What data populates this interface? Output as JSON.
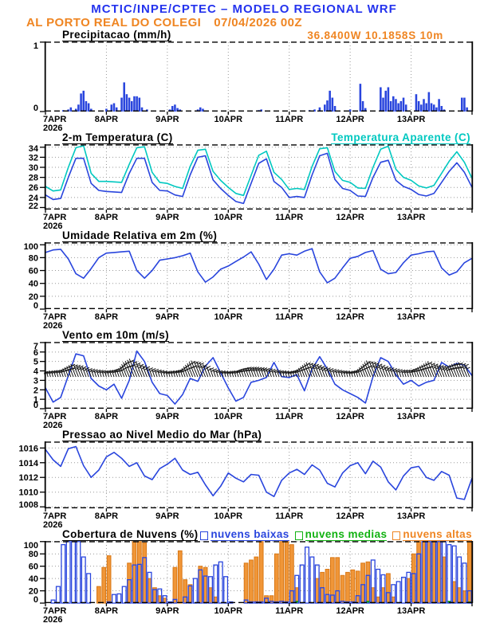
{
  "header": {
    "model_title": "MCTIC/INPE/CPTEC – MODELO REGIONAL WRF",
    "station": "AL PORTO REAL DO COLEGI",
    "run": "07/04/2026 00Z",
    "coords": "36.8400W 10.1858S 10m"
  },
  "colors": {
    "title_blue": "#2433ee",
    "orange": "#ef8522",
    "series_blue": "#2945dd",
    "cyan": "#00c8c0",
    "green": "#11b211",
    "grid_gray": "#999999",
    "axis_black": "#000000",
    "barb_black": "#151515"
  },
  "panels": {
    "precip": {
      "title": "Precipitacao (mm/h)"
    },
    "temp": {
      "title": "2-m Temperatura (C)",
      "secondary": "Temperatura Aparente (C)"
    },
    "rh": {
      "title": "Umidade Relativa em 2m (%)"
    },
    "wind": {
      "title": "Vento em 10m (m/s)"
    },
    "slp": {
      "title": "Pressao ao Nivel Medio do Mar (hPa)"
    },
    "clouds": {
      "title": "Cobertura de Nuvens (%)",
      "legend": [
        {
          "label": "nuvens baixas",
          "color": "#2945dd"
        },
        {
          "label": "nuvens medias",
          "color": "#11b211"
        },
        {
          "label": "nuvens altas",
          "color": "#ef8522"
        }
      ]
    }
  },
  "xaxis": {
    "day_labels": [
      "7APR",
      "8APR",
      "9APR",
      "10APR",
      "11APR",
      "12APR",
      "13APR"
    ],
    "year": "2026",
    "span_hours": 168
  },
  "chart_data": [
    {
      "id": "precip",
      "type": "bar",
      "title": "Precipitacao (mm/h)",
      "ylim": [
        0,
        1.01
      ],
      "yticks": [
        0,
        1
      ],
      "grid": "days-only",
      "series": [
        {
          "name": "precipitation",
          "type": "bars_pairs",
          "color": "#2945dd",
          "units": "mm/h",
          "data_hour_value": [
            [
              7,
              0.02
            ],
            [
              9,
              0.03
            ],
            [
              10,
              0.06
            ],
            [
              12,
              0.04
            ],
            [
              13,
              0.1
            ],
            [
              14,
              0.26
            ],
            [
              15,
              0.3
            ],
            [
              16,
              0.15
            ],
            [
              17,
              0.12
            ],
            [
              18,
              0.04
            ],
            [
              24,
              0.04
            ],
            [
              26,
              0.1
            ],
            [
              27,
              0.12
            ],
            [
              28,
              0.06
            ],
            [
              30,
              0.2
            ],
            [
              31,
              0.42
            ],
            [
              32,
              0.25
            ],
            [
              33,
              0.2
            ],
            [
              34,
              0.15
            ],
            [
              35,
              0.22
            ],
            [
              36,
              0.22
            ],
            [
              37,
              0.2
            ],
            [
              38,
              0.06
            ],
            [
              40,
              0.03
            ],
            [
              49,
              0.03
            ],
            [
              50,
              0.08
            ],
            [
              51,
              0.1
            ],
            [
              52,
              0.05
            ],
            [
              53,
              0.03
            ],
            [
              60,
              0.03
            ],
            [
              61,
              0.06
            ],
            [
              62,
              0.04
            ],
            [
              84,
              0.02
            ],
            [
              85,
              0.03
            ],
            [
              104,
              0.02
            ],
            [
              106,
              0.03
            ],
            [
              108,
              0.06
            ],
            [
              110,
              0.1
            ],
            [
              111,
              0.16
            ],
            [
              112,
              0.3
            ],
            [
              113,
              0.2
            ],
            [
              114,
              0.08
            ],
            [
              120,
              0.03
            ],
            [
              124,
              0.4
            ],
            [
              125,
              0.15
            ],
            [
              126,
              0.05
            ],
            [
              132,
              0.35
            ],
            [
              133,
              0.2
            ],
            [
              134,
              0.3
            ],
            [
              135,
              0.35
            ],
            [
              136,
              0.15
            ],
            [
              137,
              0.22
            ],
            [
              138,
              0.18
            ],
            [
              139,
              0.12
            ],
            [
              140,
              0.15
            ],
            [
              141,
              0.2
            ],
            [
              142,
              0.1
            ],
            [
              146,
              0.25
            ],
            [
              147,
              0.15
            ],
            [
              148,
              0.1
            ],
            [
              149,
              0.18
            ],
            [
              150,
              0.12
            ],
            [
              151,
              0.28
            ],
            [
              152,
              0.12
            ],
            [
              153,
              0.1
            ],
            [
              154,
              0.06
            ],
            [
              155,
              0.18
            ],
            [
              156,
              0.08
            ],
            [
              157,
              0.03
            ],
            [
              164,
              0.2
            ],
            [
              165,
              0.2
            ],
            [
              166,
              0.06
            ]
          ]
        }
      ]
    },
    {
      "id": "temp",
      "type": "line",
      "title": "2-m Temperatura (C)",
      "ylim": [
        21.6,
        34.6
      ],
      "yticks": [
        22,
        24,
        26,
        28,
        30,
        32,
        34
      ],
      "series": [
        {
          "name": "2-m Temperatura (C)",
          "type": "line",
          "color": "#2945dd",
          "step_hours": 3,
          "values": [
            24.5,
            23.6,
            23.8,
            28.0,
            31.8,
            31.8,
            26.8,
            25.4,
            25.2,
            25.1,
            25.0,
            28.8,
            31.8,
            31.8,
            27.0,
            25.4,
            25.3,
            24.5,
            24.2,
            28.5,
            32.0,
            32.3,
            27.5,
            25.8,
            24.4,
            23.2,
            22.8,
            26.8,
            30.8,
            31.7,
            27.2,
            26.0,
            24.0,
            24.2,
            24.0,
            28.5,
            32.3,
            32.8,
            27.6,
            25.8,
            25.4,
            24.3,
            24.2,
            28.0,
            31.0,
            31.4,
            27.4,
            26.2,
            25.6,
            24.6,
            24.3,
            24.8,
            27.0,
            29.2,
            30.9,
            29.0,
            26.0
          ]
        },
        {
          "name": "Temperatura Aparente (C)",
          "type": "line",
          "color": "#00c8c0",
          "step_hours": 3,
          "values": [
            26.2,
            25.3,
            25.5,
            30.0,
            33.9,
            34.3,
            28.8,
            27.2,
            27.2,
            27.1,
            27.0,
            30.6,
            33.9,
            34.1,
            29.0,
            27.0,
            26.8,
            26.2,
            25.8,
            30.2,
            33.4,
            33.6,
            29.2,
            27.4,
            26.0,
            24.8,
            24.4,
            28.4,
            32.4,
            33.2,
            29.0,
            27.6,
            25.6,
            25.8,
            25.6,
            30.2,
            33.7,
            33.9,
            29.2,
            27.4,
            27.0,
            25.9,
            25.8,
            30.0,
            33.6,
            34.2,
            29.6,
            28.0,
            27.4,
            26.3,
            25.9,
            26.4,
            28.8,
            31.2,
            33.1,
            31.0,
            27.8
          ]
        }
      ]
    },
    {
      "id": "rh",
      "type": "line",
      "title": "Umidade Relativa em 2m (%)",
      "ylim": [
        0,
        104
      ],
      "yticks": [
        0,
        20,
        40,
        60,
        80,
        100
      ],
      "series": [
        {
          "name": "relative humidity 2m",
          "type": "line",
          "color": "#2945dd",
          "step_hours": 3,
          "values": [
            88,
            92,
            93,
            78,
            55,
            48,
            63,
            80,
            87,
            88,
            89,
            90,
            60,
            48,
            60,
            76,
            78,
            80,
            83,
            87,
            58,
            42,
            50,
            62,
            67,
            74,
            81,
            89,
            70,
            46,
            62,
            84,
            86,
            84,
            90,
            94,
            58,
            41,
            48,
            64,
            79,
            82,
            88,
            91,
            62,
            55,
            57,
            72,
            84,
            86,
            89,
            90,
            64,
            53,
            58,
            72,
            79
          ]
        }
      ]
    },
    {
      "id": "wind",
      "type": "line",
      "title": "Vento em 10m (m/s)",
      "ylim": [
        0,
        7.08
      ],
      "yticks": [
        0,
        1,
        2,
        3,
        4,
        5,
        6,
        7
      ],
      "series": [
        {
          "name": "wind speed 10m",
          "type": "line",
          "color": "#2945dd",
          "step_hours": 3,
          "values": [
            2.2,
            0.7,
            1.2,
            3.5,
            5.8,
            5.6,
            3.2,
            2.4,
            2.0,
            2.6,
            1.1,
            3.0,
            6.1,
            5.0,
            2.8,
            1.6,
            1.4,
            0.5,
            1.5,
            3.2,
            2.9,
            4.5,
            5.4,
            3.8,
            2.2,
            0.8,
            1.2,
            2.8,
            3.0,
            3.3,
            4.9,
            3.4,
            3.3,
            3.6,
            1.9,
            4.2,
            5.5,
            4.2,
            2.6,
            2.0,
            1.6,
            1.2,
            0.6,
            3.4,
            5.4,
            5.0,
            3.6,
            2.6,
            3.0,
            2.4,
            2.8,
            3.0,
            4.9,
            4.4,
            4.8,
            4.6,
            3.5
          ]
        },
        {
          "name": "wind barbs",
          "type": "wind_barbs",
          "color": "#151515",
          "base": 3.55,
          "step_hours": 3,
          "env": [
            0.3,
            0.4,
            0.5,
            0.9,
            1.3,
            1.1,
            0.7,
            0.5,
            0.4,
            0.5,
            0.8,
            1.5,
            1.9,
            1.3,
            0.8,
            0.5,
            0.3,
            0.4,
            0.6,
            1.2,
            1.7,
            1.5,
            0.8,
            0.4,
            0.3,
            0.4,
            0.7,
            0.9,
            0.9,
            0.8,
            0.6,
            0.4,
            0.3,
            0.5,
            1.0,
            1.5,
            1.3,
            0.9,
            0.6,
            0.4,
            0.3,
            0.5,
            1.1,
            1.7,
            1.5,
            1.0,
            0.7,
            0.5,
            0.5,
            0.8,
            1.2,
            1.6,
            1.2,
            1.0,
            1.3,
            1.5,
            1.2
          ]
        }
      ]
    },
    {
      "id": "slp",
      "type": "line",
      "title": "Pressao ao Nivel Medio do Mar (hPa)",
      "ylim": [
        1007.8,
        1016.9
      ],
      "yticks": [
        1008,
        1010,
        1012,
        1014,
        1016
      ],
      "series": [
        {
          "name": "sea level pressure",
          "type": "line",
          "color": "#2945dd",
          "step_hours": 3,
          "values": [
            1015.8,
            1014.4,
            1013.5,
            1015.9,
            1016.2,
            1013.6,
            1012.0,
            1013.0,
            1014.8,
            1015.4,
            1014.6,
            1013.5,
            1014.0,
            1012.2,
            1011.7,
            1013.2,
            1013.8,
            1014.6,
            1013.0,
            1012.4,
            1012.7,
            1011.0,
            1009.5,
            1010.8,
            1012.6,
            1011.9,
            1011.4,
            1012.4,
            1012.3,
            1010.0,
            1009.4,
            1011.6,
            1012.6,
            1013.1,
            1012.4,
            1013.7,
            1013.0,
            1011.2,
            1010.7,
            1012.6,
            1013.6,
            1014.0,
            1012.5,
            1014.2,
            1013.4,
            1011.4,
            1010.3,
            1012.2,
            1013.3,
            1013.5,
            1012.0,
            1011.6,
            1012.8,
            1012.3,
            1009.2,
            1009.0,
            1011.9
          ]
        }
      ]
    },
    {
      "id": "clouds",
      "type": "bar",
      "title": "Cobertura de Nuvens (%)",
      "ylim": [
        0,
        101
      ],
      "yticks": [
        0,
        20,
        40,
        60,
        80,
        100
      ],
      "series": [
        {
          "name": "nuvens altas",
          "type": "cloud_bars",
          "fill": "#f09638",
          "stroke": "#d97714",
          "step_hours": 2,
          "values": [
            0,
            0,
            0,
            0,
            0,
            0,
            0,
            0,
            0,
            0,
            27,
            58,
            77,
            0,
            0,
            0,
            65,
            100,
            100,
            98,
            40,
            25,
            12,
            8,
            0,
            58,
            85,
            38,
            30,
            0,
            60,
            58,
            25,
            10,
            0,
            0,
            0,
            0,
            0,
            65,
            70,
            75,
            100,
            12,
            12,
            80,
            100,
            100,
            95,
            25,
            0,
            0,
            0,
            40,
            50,
            55,
            74,
            74,
            45,
            50,
            54,
            52,
            65,
            67,
            25,
            10,
            25,
            48,
            10,
            0,
            0,
            40,
            80,
            100,
            100,
            100,
            100,
            100,
            75,
            0,
            35,
            25,
            20,
            100
          ]
        },
        {
          "name": "nuvens medias",
          "type": "cloud_bars",
          "fill": "#11b211",
          "stroke": "#0b8f0b",
          "step_hours": 2,
          "values": [
            0,
            0,
            0,
            0,
            0,
            0,
            0,
            0,
            0,
            0,
            0,
            0,
            0,
            0,
            0,
            0,
            0,
            0,
            0,
            0,
            0,
            0,
            0,
            0,
            0,
            0,
            0,
            0,
            0,
            0,
            0,
            0,
            0,
            0,
            0,
            0,
            0,
            0,
            0,
            0,
            0,
            0,
            0,
            0,
            0,
            0,
            0,
            0,
            0,
            3,
            0,
            0,
            0,
            0,
            0,
            0,
            0,
            0,
            0,
            0,
            0,
            0,
            0,
            3,
            0,
            0,
            0,
            0,
            0,
            0,
            0,
            0,
            0,
            0,
            0,
            0,
            0,
            0,
            0,
            3,
            0,
            0,
            0,
            2
          ]
        },
        {
          "name": "nuvens baixas",
          "type": "cloud_bars",
          "fill": "none",
          "stroke": "#2945dd",
          "step_hours": 2,
          "values": [
            0,
            5,
            27,
            95,
            100,
            100,
            100,
            75,
            48,
            0,
            0,
            0,
            2,
            14,
            15,
            27,
            38,
            62,
            63,
            74,
            50,
            22,
            23,
            12,
            2,
            6,
            0,
            10,
            28,
            40,
            54,
            44,
            43,
            62,
            67,
            43,
            2,
            0,
            0,
            5,
            2,
            2,
            2,
            8,
            3,
            2,
            3,
            2,
            20,
            45,
            62,
            91,
            75,
            62,
            25,
            14,
            13,
            20,
            3,
            2,
            2,
            12,
            30,
            45,
            70,
            55,
            46,
            17,
            30,
            35,
            42,
            50,
            48,
            80,
            100,
            100,
            100,
            100,
            100,
            95,
            93,
            75,
            65,
            20
          ]
        }
      ]
    }
  ]
}
